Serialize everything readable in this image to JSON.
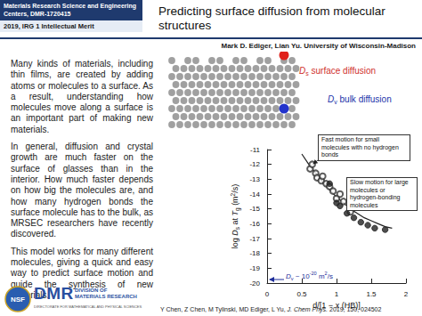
{
  "header": {
    "center_name": "Materials Research Science and Engineering Centers, DMR-1720415",
    "year_line": "2019, IRG 1 Intellectual Merit",
    "title": "Predicting surface diffusion from molecular structures",
    "authors": "Mark D. Ediger, Lian Yu. University of Wisconsin-Madison"
  },
  "body": [
    "Many kinds of materials, including thin films, are created by adding atoms or molecules to a surface. As a result, understanding how molecules move along a surface is an important part of making new materials.",
    "In general, diffusion and crystal growth are much faster on the surface of glasses than in the interior. How much faster depends on how big the molecules are, and how many hydrogen bonds the surface molecule has to the bulk, as MRSEC researchers have recently discovered.",
    "This model works for many different molecules, giving a quick and easy way to predict surface motion and guide the synthesis of new materials."
  ],
  "diagram": {
    "surface_label": [
      {
        "text": "D",
        "italic": true
      },
      {
        "text": "s",
        "sub": true
      },
      {
        "text": " surface diffusion"
      }
    ],
    "bulk_label": [
      {
        "text": "D",
        "italic": true
      },
      {
        "text": "v",
        "sub": true
      },
      {
        "text": " bulk diffusion"
      }
    ]
  },
  "chart_data": {
    "type": "scatter",
    "xlabel": [
      {
        "text": "d/[1 − x (HB)]"
      }
    ],
    "ylabel": [
      {
        "text": "log "
      },
      {
        "text": "D",
        "italic": true
      },
      {
        "text": "s",
        "sub": true
      },
      {
        "text": " at "
      },
      {
        "text": "T",
        "italic": true
      },
      {
        "text": "g",
        "sub": true
      },
      {
        "text": " (m"
      },
      {
        "text": "2",
        "sup": true
      },
      {
        "text": "/s)"
      }
    ],
    "xlim": [
      0,
      2
    ],
    "xticks": [
      0,
      0.5,
      1,
      1.5,
      2
    ],
    "ylim": [
      -20,
      -11
    ],
    "yticks": [
      -20,
      -19,
      -18,
      -17,
      -16,
      -15,
      -14,
      -13,
      -12,
      -11
    ],
    "grid": false,
    "series": [
      {
        "type": "line",
        "marker": "none",
        "line_style": "solid",
        "color": "#222222",
        "x": [
          0.5,
          0.6,
          0.7,
          0.8,
          0.9,
          1.0,
          1.1,
          1.2,
          1.3,
          1.4,
          1.5,
          1.6,
          1.7,
          1.8
        ],
        "values": [
          -11.3,
          -12.0,
          -12.6,
          -13.2,
          -13.7,
          -14.2,
          -14.6,
          -15.0,
          -15.3,
          -15.6,
          -15.8,
          -16.0,
          -16.2,
          -16.3
        ]
      },
      {
        "type": "scatter",
        "marker": "open_circle",
        "color": "#333333",
        "x": [
          0.62,
          0.65,
          0.7,
          0.72,
          0.78,
          0.8,
          0.85,
          0.9,
          0.95,
          1.0,
          1.05,
          1.1,
          1.2
        ],
        "values": [
          -12.3,
          -12.0,
          -12.6,
          -12.9,
          -13.1,
          -12.8,
          -13.3,
          -13.5,
          -13.8,
          -14.3,
          -14.0,
          -14.5,
          -15.2
        ]
      },
      {
        "type": "scatter",
        "marker": "filled_circle",
        "color": "#222222",
        "x": [
          0.9,
          1.0,
          1.05,
          1.15,
          1.25,
          1.35,
          1.45,
          1.55,
          1.7
        ],
        "values": [
          -13.3,
          -14.6,
          -14.8,
          -15.3,
          -15.6,
          -15.9,
          -16.1,
          -16.3,
          -16.4
        ]
      }
    ],
    "annotations": [
      [
        {
          "text": "Fast motion for small molecules with no hydrogen bonds"
        }
      ],
      [
        {
          "text": "Slow motion for large molecules or hydrogen-bonding molecules"
        }
      ],
      [
        {
          "text": "D",
          "italic": true
        },
        {
          "text": "v",
          "sub": true
        },
        {
          "text": " ~ 10"
        },
        {
          "text": "-20",
          "sup": true
        },
        {
          "text": " m"
        },
        {
          "text": "2",
          "sup": true
        },
        {
          "text": "/s"
        }
      ]
    ]
  },
  "footer": {
    "logo_seal": "NSF",
    "logo_mark": "DMR",
    "logo_text": [
      "DIVISION OF",
      "MATERIALS RESEARCH"
    ],
    "directorate": "DIRECTORATE FOR MATHEMATICAL AND PHYSICAL SCIENCES",
    "citation": [
      {
        "text": "Y Chen, Z Chen, M Tylinski, MD Ediger, L Yu, "
      },
      {
        "text": "J. Chem Phys.",
        "italic": true
      },
      {
        "text": " 2019, 150, 024502"
      }
    ]
  }
}
